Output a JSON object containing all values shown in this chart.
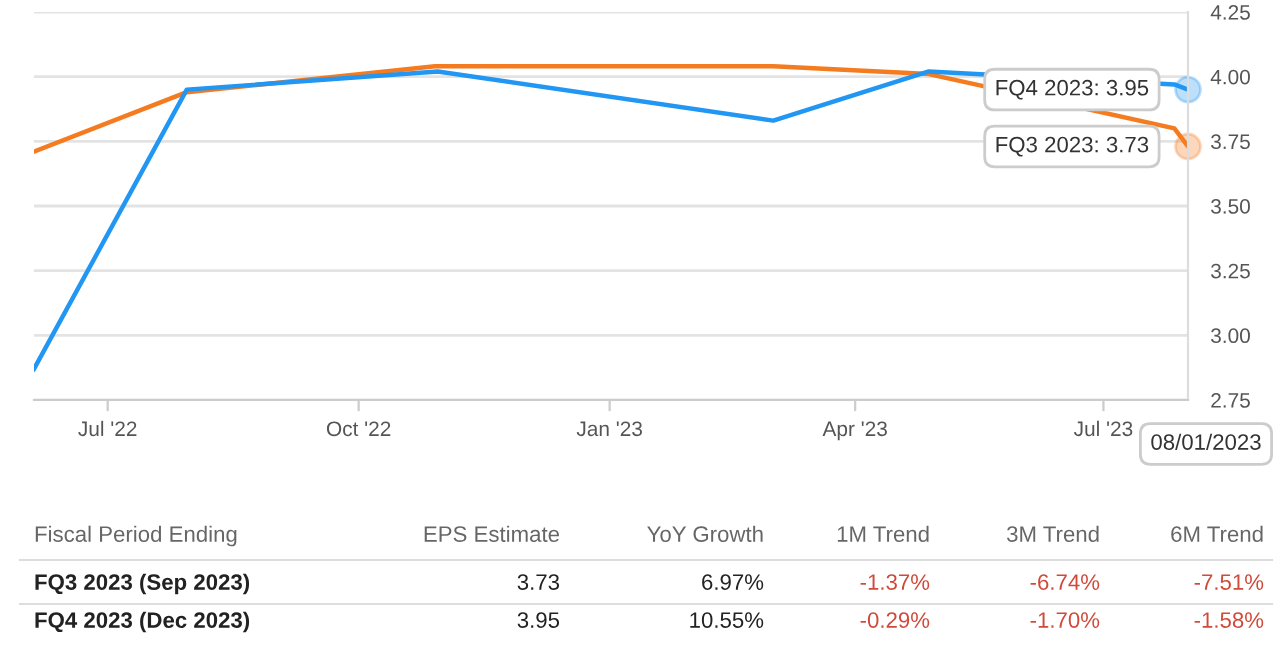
{
  "chart_data": {
    "type": "line",
    "x": [
      "2022-06-04",
      "2022-07-30",
      "2022-10-29",
      "2023-03-02",
      "2023-04-28",
      "2023-07-27",
      "2023-08-01"
    ],
    "series": [
      {
        "color": "#f47b20",
        "values": [
          3.71,
          3.94,
          4.04,
          4.04,
          4.01,
          3.8,
          3.73
        ]
      },
      {
        "color": "#2196f3",
        "x": [
          "2022-06-04",
          "2022-07-30",
          "2022-10-30",
          "2023-03-02",
          "2023-04-28",
          "2023-07-27",
          "2023-08-01"
        ],
        "values": [
          2.87,
          3.95,
          4.02,
          3.83,
          4.02,
          3.97,
          3.95
        ]
      }
    ],
    "xlim": [
      "2022-06-04",
      "2023-08-01"
    ],
    "xticks": [
      {
        "value": "2022-07-01",
        "label": "Jul '22"
      },
      {
        "value": "2022-10-01",
        "label": "Oct '22"
      },
      {
        "value": "2023-01-01",
        "label": "Jan '23"
      },
      {
        "value": "2023-04-01",
        "label": "Apr '23"
      },
      {
        "value": "2023-07-01",
        "label": "Jul '23"
      }
    ],
    "ylim": [
      2.75,
      4.25
    ],
    "yticks": [
      {
        "value": 2.75,
        "label": "2.75"
      },
      {
        "value": 3.0,
        "label": "3.00"
      },
      {
        "value": 3.25,
        "label": "3.25"
      },
      {
        "value": 3.5,
        "label": "3.50"
      },
      {
        "value": 3.75,
        "label": "3.75"
      },
      {
        "value": 4.0,
        "label": "4.00"
      },
      {
        "value": 4.25,
        "label": "4.25"
      }
    ],
    "grid": "y",
    "legend": false,
    "marker": "none",
    "annotations": [
      {
        "text": "FQ4 2023: 3.95",
        "x": "2023-08-01",
        "y": 3.95
      },
      {
        "text": "FQ3 2023: 3.73",
        "x": "2023-08-01",
        "y": 3.73
      },
      "08/01/2023",
      "Fiscal Period Ending",
      "EPS Estimate",
      "YoY Growth",
      "1M Trend",
      "3M Trend",
      "6M Trend",
      "FQ3 2023 (Sep 2023)",
      "3.73",
      "6.97%",
      "-1.37%",
      "-6.74%",
      "-7.51%",
      "FQ4 2023 (Dec 2023)",
      "3.95",
      "10.55%",
      "-0.29%",
      "-1.70%",
      "-1.58%"
    ]
  }
}
